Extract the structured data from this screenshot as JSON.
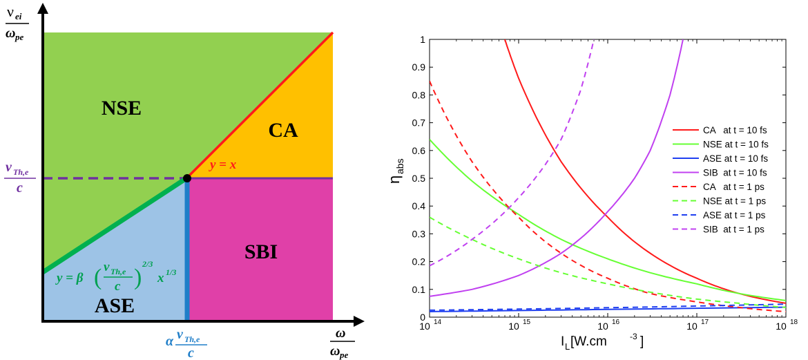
{
  "colors": {
    "nse_region": "#92d050",
    "ca_region": "#ffc000",
    "ase_region": "#9dc3e6",
    "sbi_region": "#e040a8",
    "red": "#ff1a1a",
    "green_line": "#00b050",
    "blue_line": "#1f7ec8",
    "purple": "#7030a0",
    "green_curve": "#66ff33",
    "blue_curve": "#1f3ff0",
    "violet_curve": "#c040f0",
    "ase_formula_color": "#00a050"
  },
  "diagram": {
    "y_axis_label_num": "ν",
    "y_axis_label_num_sub": "ei",
    "y_axis_label_den": "ω",
    "y_axis_label_den_sub": "pe",
    "x_axis_label_num": "ω",
    "x_axis_label_den": "ω",
    "x_axis_label_den_sub": "pe",
    "y_tick_num": "v",
    "y_tick_sub": "Th,e",
    "y_tick_den": "c",
    "x_tick_prefix": "α",
    "x_tick_num": "v",
    "x_tick_sub": "Th,e",
    "x_tick_den": "c",
    "regions": {
      "nse": "NSE",
      "ca": "CA",
      "ase": "ASE",
      "sbi": "SBI"
    },
    "ca_line_label": "y = x",
    "ase_formula": {
      "lhs": "y = β",
      "open": "(",
      "num": "v",
      "num_sub": "Th,e",
      "den": "c",
      "close": ")",
      "exp1": "2/3",
      "x": "x",
      "exp2": "1/3"
    }
  },
  "chart_data": {
    "type": "line",
    "ylabel": "η",
    "ylabel_sub": "abs",
    "xlabel": "I",
    "xlabel_sub": "L",
    "xlabel_unit": " [W.cm",
    "xlabel_exp": "-3",
    "xlabel_close": "]",
    "x_scale": "log",
    "xlim": [
      100000000000000.0,
      1e+18
    ],
    "ylim": [
      0,
      1
    ],
    "x_ticks": [
      {
        "value": 100000000000000.0,
        "base": "10",
        "exp": "14"
      },
      {
        "value": 1000000000000000.0,
        "base": "10",
        "exp": "15"
      },
      {
        "value": 1e+16,
        "base": "10",
        "exp": "16"
      },
      {
        "value": 1e+17,
        "base": "10",
        "exp": "17"
      },
      {
        "value": 1e+18,
        "base": "10",
        "exp": "18"
      }
    ],
    "y_ticks": [
      "0",
      "0.1",
      "0.2",
      "0.3",
      "0.4",
      "0.5",
      "0.6",
      "0.7",
      "0.8",
      "0.9",
      "1"
    ],
    "y_tick_values": [
      0,
      0.1,
      0.2,
      0.3,
      0.4,
      0.5,
      0.6,
      0.7,
      0.8,
      0.9,
      1
    ],
    "legend_placement": "right",
    "series": [
      {
        "name": "CA   at t = 10 fs",
        "color": "#ff1a1a",
        "dash": false,
        "x": [
          700000000000000.0,
          1000000000000000.0,
          3000000000000000.0,
          1e+16,
          3e+16,
          1e+17,
          3e+17,
          1e+18
        ],
        "y": [
          1.0,
          0.86,
          0.56,
          0.36,
          0.23,
          0.14,
          0.085,
          0.05
        ]
      },
      {
        "name": "NSE at t = 10 fs",
        "color": "#66ff33",
        "dash": false,
        "x": [
          100000000000000.0,
          300000000000000.0,
          1000000000000000.0,
          3000000000000000.0,
          1e+16,
          3e+16,
          1e+17,
          3e+17,
          1e+18
        ],
        "y": [
          0.64,
          0.49,
          0.37,
          0.28,
          0.21,
          0.16,
          0.12,
          0.085,
          0.06
        ]
      },
      {
        "name": "ASE at t = 10 fs",
        "color": "#1f3ff0",
        "dash": false,
        "x": [
          100000000000000.0,
          1000000000000000.0,
          1e+16,
          1e+17,
          1e+18
        ],
        "y": [
          0.02,
          0.024,
          0.028,
          0.032,
          0.036
        ]
      },
      {
        "name": "SIB  at t = 10 fs",
        "color": "#c040f0",
        "dash": false,
        "x": [
          100000000000000.0,
          300000000000000.0,
          1000000000000000.0,
          3000000000000000.0,
          1e+16,
          2e+16,
          3e+16,
          5e+16,
          7e+16
        ],
        "y": [
          0.075,
          0.1,
          0.15,
          0.23,
          0.38,
          0.5,
          0.6,
          0.8,
          1.0
        ]
      },
      {
        "name": "CA   at t = 1 ps",
        "color": "#ff1a1a",
        "dash": true,
        "x": [
          100000000000000.0,
          300000000000000.0,
          1000000000000000.0,
          3000000000000000.0,
          1e+16,
          3e+16,
          1e+17,
          3e+17,
          1e+18
        ],
        "y": [
          0.85,
          0.56,
          0.36,
          0.23,
          0.14,
          0.085,
          0.055,
          0.035,
          0.02
        ]
      },
      {
        "name": "NSE at t = 1 ps",
        "color": "#66ff33",
        "dash": true,
        "x": [
          100000000000000.0,
          300000000000000.0,
          1000000000000000.0,
          3000000000000000.0,
          1e+16,
          3e+16,
          1e+17,
          3e+17,
          1e+18
        ],
        "y": [
          0.36,
          0.28,
          0.21,
          0.16,
          0.12,
          0.09,
          0.065,
          0.05,
          0.035
        ]
      },
      {
        "name": "ASE at t = 1 ps",
        "color": "#1f3ff0",
        "dash": true,
        "x": [
          100000000000000.0,
          1000000000000000.0,
          1e+16,
          1e+17,
          1e+18
        ],
        "y": [
          0.025,
          0.029,
          0.034,
          0.04,
          0.047
        ]
      },
      {
        "name": "SIB  at t = 1 ps",
        "color": "#c040f0",
        "dash": true,
        "x": [
          100000000000000.0,
          300000000000000.0,
          1000000000000000.0,
          2000000000000000.0,
          3000000000000000.0,
          5000000000000000.0,
          7000000000000000.0
        ],
        "y": [
          0.185,
          0.28,
          0.43,
          0.55,
          0.64,
          0.82,
          1.0
        ]
      }
    ]
  }
}
